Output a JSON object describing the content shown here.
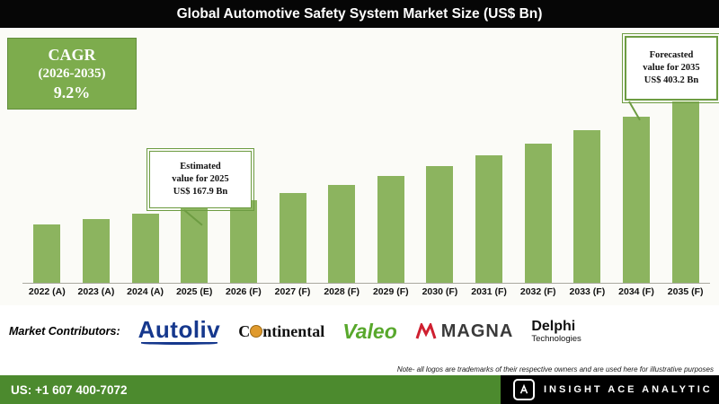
{
  "header": {
    "title": "Global Automotive Safety System Market Size (US$ Bn)"
  },
  "cagr": {
    "line1": "CAGR",
    "line2": "(2026-2035)",
    "line3": "9.2%"
  },
  "callouts": {
    "estimated": {
      "line1": "Estimated",
      "line2": "value for 2025",
      "line3": "US$ 167.9 Bn"
    },
    "forecast": {
      "line1": "Forecasted",
      "line2": "value for 2035",
      "line3": "US$ 403.2 Bn"
    }
  },
  "chart_data": {
    "type": "bar",
    "title": "Global Automotive Safety System Market Size (US$ Bn)",
    "categories": [
      "2022 (A)",
      "2023 (A)",
      "2024 (A)",
      "2025 (E)",
      "2026 (F)",
      "2027 (F)",
      "2028 (F)",
      "2029 (F)",
      "2030 (F)",
      "2031 (F)",
      "2032 (F)",
      "2033 (F)",
      "2034 (F)",
      "2035 (F)"
    ],
    "values": [
      130.2,
      141.8,
      154.3,
      167.9,
      183.3,
      200.2,
      218.6,
      238.7,
      260.7,
      284.7,
      310.9,
      339.5,
      370.7,
      403.2
    ],
    "xlabel": "",
    "ylabel": "",
    "ylim": [
      0,
      420
    ],
    "bar_color": "#8cb45f",
    "grid": false,
    "legend": false,
    "cagr_2026_2035_pct": 9.2,
    "annotations": [
      "Estimated value for 2025 US$ 167.9 Bn",
      "Forecasted value for 2035 US$ 403.2 Bn"
    ]
  },
  "contributors": {
    "label": "Market Contributors:",
    "autoliv": "Autoliv",
    "continental_c": "C",
    "continental_rest": "ntinental",
    "valeo": "Valeo",
    "magna": "MAGNA",
    "delphi_line1": "Delphi",
    "delphi_line2": "Technologies",
    "note": "Note- all logos are trademarks of their respective owners and are used here for illustrative purposes"
  },
  "footer": {
    "phone": "US: +1 607 400-7072",
    "brand": "INSIGHT ACE ANALYTIC"
  }
}
